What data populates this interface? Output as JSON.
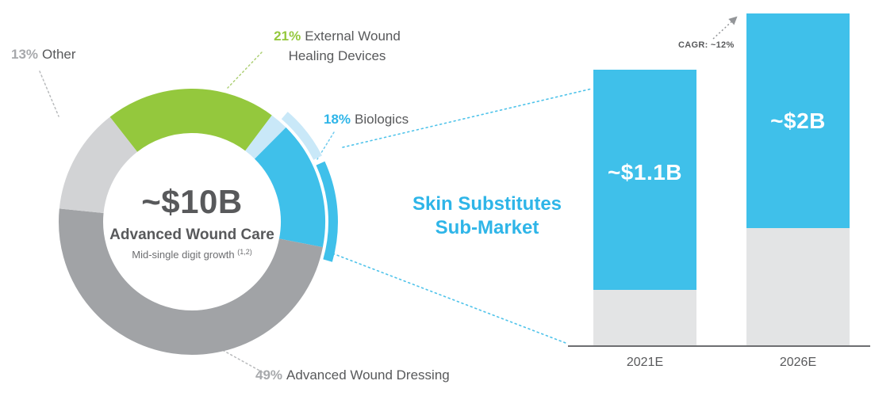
{
  "palette": {
    "green": "#94c83d",
    "cyan": "#3fc0ea",
    "pale_blue": "#c9e8f8",
    "gray": "#a1a3a6",
    "light_gray": "#d2d3d5",
    "bar_base_gray": "#e3e4e5",
    "text_dark": "#58595b",
    "label_gray": "#a7a9ac",
    "headline_cyan": "#2eb5e8"
  },
  "donut": {
    "center_value": "~$10B",
    "center_title": "Advanced Wound Care",
    "center_subtitle": "Mid-single digit growth ",
    "center_superscript": "(1,2)",
    "labels": {
      "other": {
        "pct": "13%",
        "label": "Other"
      },
      "external": {
        "pct": "21%",
        "label": "External Wound Healing Devices"
      },
      "biologics": {
        "pct": "18%",
        "label": "Biologics"
      },
      "dressing": {
        "pct": "49%",
        "label": "Advanced Wound Dressing"
      }
    }
  },
  "submarket": {
    "line1": "Skin Substitutes",
    "line2": "Sub-Market"
  },
  "bar_chart": {
    "cagr": "CAGR: ~12%",
    "bars": [
      {
        "category": "2021E",
        "label": "~$1.1B"
      },
      {
        "category": "2026E",
        "label": "~$2B"
      }
    ]
  },
  "chart_data": [
    {
      "type": "pie",
      "subtype": "donut",
      "title": "Advanced Wound Care",
      "center_value": "~$10B",
      "subtitle": "Mid-single digit growth (1,2)",
      "categories": [
        "External Wound Healing Devices",
        "Biologics",
        "Advanced Wound Dressing",
        "Other"
      ],
      "values": [
        21,
        18,
        49,
        13
      ],
      "unit": "percent of ~$10B market"
    },
    {
      "type": "bar",
      "title": "Skin Substitutes Sub-Market",
      "categories": [
        "2021E",
        "2026E"
      ],
      "values": [
        1.1,
        2.0
      ],
      "value_labels": [
        "~$1.1B",
        "~$2B"
      ],
      "annotation": "CAGR: ~12%",
      "unit": "USD billions",
      "legend_position": "none",
      "grid": false
    }
  ]
}
